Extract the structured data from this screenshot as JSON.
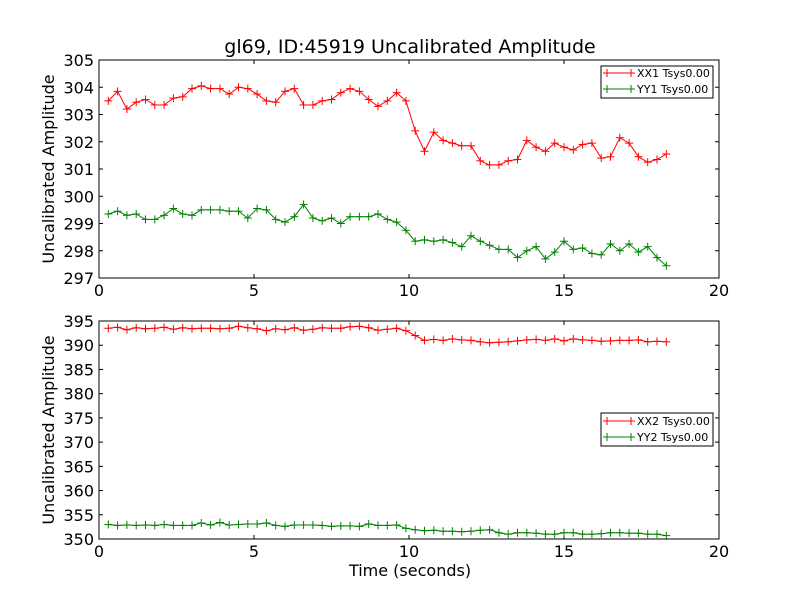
{
  "chart_data": [
    {
      "type": "line",
      "title": "gl69, ID:45919 Uncalibrated Amplitude",
      "xlabel": "",
      "ylabel": "Uncalibrated Amplitude",
      "xlim": [
        0,
        20
      ],
      "ylim": [
        297,
        305
      ],
      "xticks": [
        0,
        5,
        10,
        15,
        20
      ],
      "yticks": [
        297,
        298,
        299,
        300,
        301,
        302,
        303,
        304,
        305
      ],
      "grid": false,
      "legend_position": "top-right",
      "marker": "+",
      "x": [
        0.3,
        0.6,
        0.9,
        1.2,
        1.5,
        1.8,
        2.1,
        2.4,
        2.7,
        3.0,
        3.3,
        3.6,
        3.9,
        4.2,
        4.5,
        4.8,
        5.1,
        5.4,
        5.7,
        6.0,
        6.3,
        6.6,
        6.9,
        7.2,
        7.5,
        7.8,
        8.1,
        8.4,
        8.7,
        9.0,
        9.3,
        9.6,
        9.9,
        10.2,
        10.5,
        10.8,
        11.1,
        11.4,
        11.7,
        12.0,
        12.3,
        12.6,
        12.9,
        13.2,
        13.5,
        13.8,
        14.1,
        14.4,
        14.7,
        15.0,
        15.3,
        15.6,
        15.9,
        16.2,
        16.5,
        16.8,
        17.1,
        17.4,
        17.7,
        18.0,
        18.3
      ],
      "series": [
        {
          "name": "XX1 Tsys0.00",
          "color": "#ff0000",
          "values": [
            303.5,
            303.85,
            303.2,
            303.45,
            303.55,
            303.35,
            303.35,
            303.6,
            303.65,
            303.95,
            304.05,
            303.95,
            303.95,
            303.75,
            304.0,
            303.95,
            303.75,
            303.5,
            303.45,
            303.85,
            303.95,
            303.35,
            303.35,
            303.5,
            303.55,
            303.8,
            303.95,
            303.85,
            303.55,
            303.3,
            303.5,
            303.8,
            303.5,
            302.4,
            301.65,
            302.35,
            302.05,
            301.95,
            301.85,
            301.85,
            301.3,
            301.15,
            301.15,
            301.3,
            301.35,
            302.05,
            301.8,
            301.65,
            301.95,
            301.8,
            301.7,
            301.9,
            301.95,
            301.4,
            301.45,
            302.15,
            301.95,
            301.45,
            301.25,
            301.35,
            301.55
          ]
        },
        {
          "name": "YY1 Tsys0.00",
          "color": "#008000",
          "values": [
            299.35,
            299.45,
            299.3,
            299.35,
            299.15,
            299.15,
            299.3,
            299.55,
            299.35,
            299.3,
            299.5,
            299.5,
            299.5,
            299.45,
            299.45,
            299.2,
            299.55,
            299.5,
            299.15,
            299.05,
            299.25,
            299.7,
            299.2,
            299.1,
            299.2,
            299.0,
            299.25,
            299.25,
            299.25,
            299.35,
            299.15,
            299.05,
            298.75,
            298.35,
            298.4,
            298.35,
            298.4,
            298.3,
            298.15,
            298.55,
            298.35,
            298.2,
            298.05,
            298.05,
            297.75,
            298.0,
            298.15,
            297.7,
            297.95,
            298.35,
            298.05,
            298.1,
            297.9,
            297.85,
            298.25,
            298.0,
            298.25,
            297.95,
            298.15,
            297.75,
            297.45
          ]
        }
      ]
    },
    {
      "type": "line",
      "title": "",
      "xlabel": "Time (seconds)",
      "ylabel": "Uncalibrated Amplitude",
      "xlim": [
        0,
        20
      ],
      "ylim": [
        350,
        395
      ],
      "xticks": [
        0,
        5,
        10,
        15,
        20
      ],
      "yticks": [
        350,
        355,
        360,
        365,
        370,
        375,
        380,
        385,
        390,
        395
      ],
      "grid": false,
      "legend_position": "center-right",
      "marker": "+",
      "x": [
        0.3,
        0.6,
        0.9,
        1.2,
        1.5,
        1.8,
        2.1,
        2.4,
        2.7,
        3.0,
        3.3,
        3.6,
        3.9,
        4.2,
        4.5,
        4.8,
        5.1,
        5.4,
        5.7,
        6.0,
        6.3,
        6.6,
        6.9,
        7.2,
        7.5,
        7.8,
        8.1,
        8.4,
        8.7,
        9.0,
        9.3,
        9.6,
        9.9,
        10.2,
        10.5,
        10.8,
        11.1,
        11.4,
        11.7,
        12.0,
        12.3,
        12.6,
        12.9,
        13.2,
        13.5,
        13.8,
        14.1,
        14.4,
        14.7,
        15.0,
        15.3,
        15.6,
        15.9,
        16.2,
        16.5,
        16.8,
        17.1,
        17.4,
        17.7,
        18.0,
        18.3
      ],
      "series": [
        {
          "name": "XX2 Tsys0.00",
          "color": "#ff0000",
          "values": [
            393.5,
            393.7,
            393.2,
            393.6,
            393.4,
            393.5,
            393.7,
            393.3,
            393.6,
            393.4,
            393.5,
            393.5,
            393.4,
            393.5,
            393.9,
            393.6,
            393.4,
            393.0,
            393.4,
            393.2,
            393.6,
            393.1,
            393.3,
            393.6,
            393.5,
            393.5,
            393.8,
            393.9,
            393.6,
            393.1,
            393.3,
            393.5,
            393.0,
            392.0,
            391.0,
            391.2,
            391.0,
            391.3,
            391.1,
            391.0,
            390.7,
            390.5,
            390.6,
            390.7,
            390.9,
            391.1,
            391.2,
            391.0,
            391.3,
            390.9,
            391.3,
            391.1,
            391.0,
            390.8,
            390.9,
            391.0,
            391.0,
            391.1,
            390.7,
            390.8,
            390.7
          ]
        },
        {
          "name": "YY2 Tsys0.00",
          "color": "#008000",
          "values": [
            353.0,
            352.8,
            352.9,
            352.8,
            352.9,
            352.8,
            353.0,
            352.8,
            352.8,
            352.8,
            353.3,
            352.9,
            353.4,
            352.9,
            353.0,
            353.1,
            353.1,
            353.3,
            352.8,
            352.6,
            352.9,
            352.9,
            352.9,
            352.8,
            352.6,
            352.7,
            352.7,
            352.6,
            353.1,
            352.8,
            352.8,
            352.9,
            352.2,
            351.9,
            351.7,
            351.8,
            351.6,
            351.6,
            351.5,
            351.6,
            351.8,
            351.9,
            351.3,
            351.0,
            351.3,
            351.3,
            351.2,
            351.0,
            351.0,
            351.3,
            351.3,
            351.0,
            351.0,
            351.1,
            351.3,
            351.3,
            351.2,
            351.2,
            351.0,
            351.0,
            350.7
          ]
        }
      ]
    }
  ]
}
